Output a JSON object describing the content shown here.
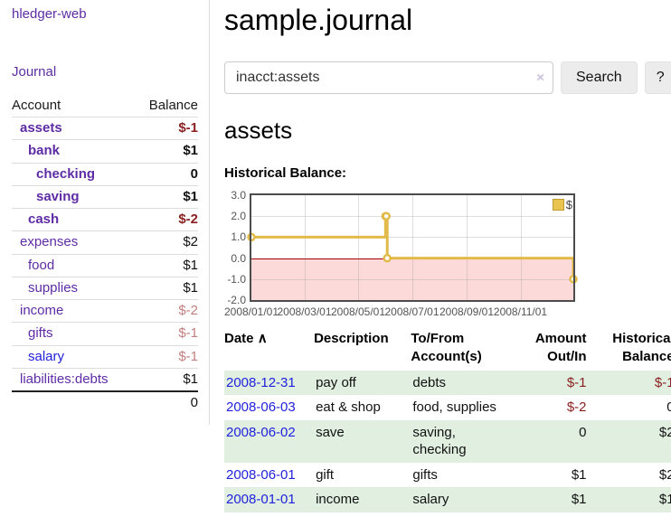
{
  "sidebar": {
    "app_title": "hledger-web",
    "journal_link": "Journal",
    "accounts_table": {
      "headers": {
        "account": "Account",
        "balance": "Balance"
      },
      "rows": [
        {
          "name": "assets",
          "depth": 1,
          "emph": true,
          "link_color": "purple",
          "balance": "$-1",
          "balance_style": "neg-strong"
        },
        {
          "name": "bank",
          "depth": 2,
          "emph": true,
          "link_color": "purple",
          "balance": "$1",
          "balance_style": "pos"
        },
        {
          "name": "checking",
          "depth": 3,
          "emph": true,
          "link_color": "purple",
          "balance": "0",
          "balance_style": "pos"
        },
        {
          "name": "saving",
          "depth": 3,
          "emph": true,
          "link_color": "purple",
          "balance": "$1",
          "balance_style": "pos"
        },
        {
          "name": "cash",
          "depth": 2,
          "emph": true,
          "link_color": "purple",
          "balance": "$-2",
          "balance_style": "neg-strong"
        },
        {
          "name": "expenses",
          "depth": 1,
          "emph": false,
          "link_color": "purple",
          "balance": "$2",
          "balance_style": "pos"
        },
        {
          "name": "food",
          "depth": 2,
          "emph": false,
          "link_color": "purple",
          "balance": "$1",
          "balance_style": "pos"
        },
        {
          "name": "supplies",
          "depth": 2,
          "emph": false,
          "link_color": "purple",
          "balance": "$1",
          "balance_style": "pos"
        },
        {
          "name": "income",
          "depth": 1,
          "emph": false,
          "link_color": "purple",
          "balance": "$-2",
          "balance_style": "neg-faded"
        },
        {
          "name": "gifts",
          "depth": 2,
          "emph": false,
          "link_color": "purple",
          "balance": "$-1",
          "balance_style": "neg-faded"
        },
        {
          "name": "salary",
          "depth": 2,
          "emph": false,
          "link_color": "blue",
          "balance": "$-1",
          "balance_style": "neg-faded"
        },
        {
          "name": "liabilities:debts",
          "depth": 1,
          "emph": false,
          "link_color": "purple",
          "balance": "$1",
          "balance_style": "pos"
        }
      ],
      "total": "0"
    }
  },
  "header": {
    "title": "sample.journal"
  },
  "search": {
    "value": "inacct:assets",
    "clear_icon": "×",
    "search_button": "Search",
    "help_button": "?"
  },
  "account_page": {
    "heading": "assets",
    "chart_title": "Historical Balance:"
  },
  "chart_data": {
    "type": "line",
    "title": "Historical Balance:",
    "step": true,
    "series": [
      {
        "name": "$",
        "color": "#e2ba4a",
        "points": [
          [
            "2008-01-01",
            1
          ],
          [
            "2008-06-01",
            2
          ],
          [
            "2008-06-02",
            2
          ],
          [
            "2008-06-03",
            0
          ],
          [
            "2008-12-31",
            -1
          ]
        ]
      }
    ],
    "x_range": [
      "2008-01-01",
      "2008-12-31"
    ],
    "ylim": [
      -2,
      3
    ],
    "x_ticks": [
      "2008/01/01",
      "2008/03/01",
      "2008/05/01",
      "2008/07/01",
      "2008/09/01",
      "2008/11/01"
    ],
    "y_ticks": [
      "3.0",
      "2.0",
      "1.0",
      "0.0",
      "-1.0",
      "-2.0"
    ],
    "grid": true,
    "legend_position": "top-right",
    "negative_region_color": "#fcdada",
    "zero_line_color": "#a40000"
  },
  "transactions": {
    "headers": {
      "date": "Date",
      "sort_icon": "∧",
      "description": "Description",
      "accounts": "To/From Account(s)",
      "amount": "Amount Out/In",
      "balance": "Historical Balance"
    },
    "rows": [
      {
        "date": "2008-12-31",
        "description": "pay off",
        "accounts": "debts",
        "amount": "$-1",
        "amount_neg": true,
        "balance": "$-1",
        "balance_neg": true
      },
      {
        "date": "2008-06-03",
        "description": "eat & shop",
        "accounts": "food, supplies",
        "amount": "$-2",
        "amount_neg": true,
        "balance": "0",
        "balance_neg": false
      },
      {
        "date": "2008-06-02",
        "description": "save",
        "accounts": "saving, checking",
        "amount": "0",
        "amount_neg": false,
        "balance": "$2",
        "balance_neg": false
      },
      {
        "date": "2008-06-01",
        "description": "gift",
        "accounts": "gifts",
        "amount": "$1",
        "amount_neg": false,
        "balance": "$2",
        "balance_neg": false
      },
      {
        "date": "2008-01-01",
        "description": "income",
        "accounts": "salary",
        "amount": "$1",
        "amount_neg": false,
        "balance": "$1",
        "balance_neg": false
      }
    ]
  },
  "colors": {
    "link_purple": "#5e2ca5",
    "link_blue": "#2222dd",
    "negative_strong": "#8b1f1f",
    "negative_faded": "#c47e7e",
    "chart_line_gold": "#e2ba4a",
    "negative_region_pink": "#fcdada",
    "zero_line_red": "#a40000",
    "row_stripe_green": "#e0efe0",
    "axis_text": "#545454"
  }
}
